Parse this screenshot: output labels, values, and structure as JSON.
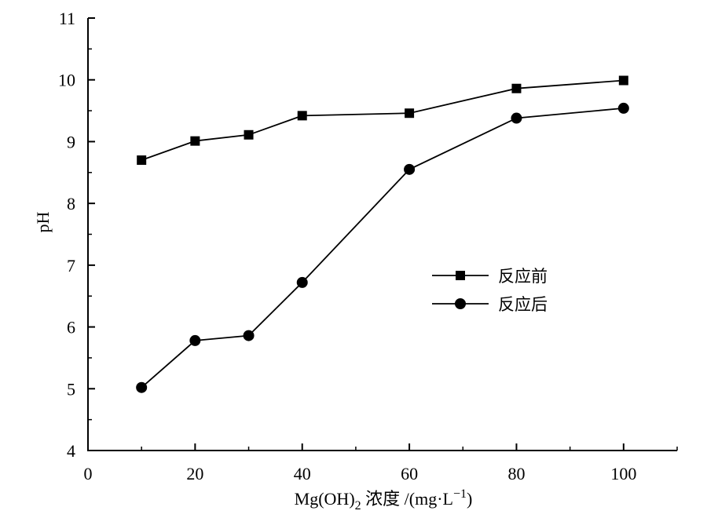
{
  "chart_data": {
    "type": "line",
    "title": "",
    "xlabel": {
      "main": "Mg(OH)",
      "sub": "2",
      "rest": " 浓度 /(mg·L",
      "sup": "−1",
      "close": ")"
    },
    "ylabel": "pH",
    "xlim": [
      0,
      110
    ],
    "ylim": [
      4,
      11
    ],
    "xticks": [
      0,
      20,
      40,
      60,
      80,
      100
    ],
    "xtick_labels": [
      "0",
      "20",
      "40",
      "60",
      "80",
      "100"
    ],
    "yticks": [
      4,
      5,
      6,
      7,
      8,
      9,
      10,
      11
    ],
    "ytick_labels": [
      "4",
      "5",
      "6",
      "7",
      "8",
      "9",
      "10",
      "11"
    ],
    "x": [
      10,
      20,
      30,
      40,
      60,
      80,
      100
    ],
    "series": [
      {
        "name": "反应前",
        "marker": "square",
        "values": [
          8.7,
          9.01,
          9.11,
          9.42,
          9.46,
          9.86,
          9.99
        ]
      },
      {
        "name": "反应后",
        "marker": "circle",
        "values": [
          5.02,
          5.78,
          5.86,
          6.72,
          8.55,
          9.38,
          9.54
        ]
      }
    ],
    "legend_position": "center-right",
    "grid": false,
    "line_color": "#000000"
  }
}
